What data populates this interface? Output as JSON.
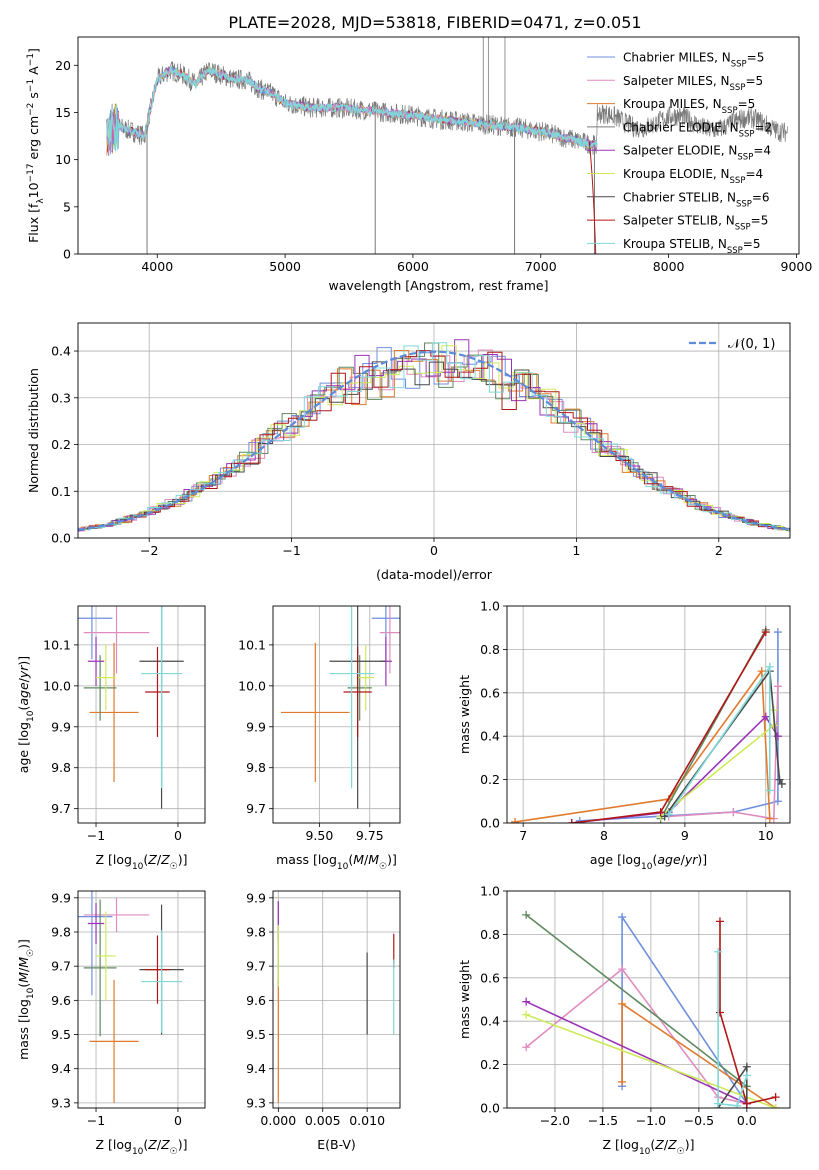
{
  "figure_title": "PLATE=2028, MJD=53818, FIBERID=0471, z=0.051",
  "colors": {
    "Chabrier MILES": "#6f8fe0",
    "Salpeter MILES": "#e08cbf",
    "Kroupa MILES": "#e07b2e",
    "Chabrier ELODIE": "#5f8a60",
    "Salpeter ELODIE": "#9a35b8",
    "Kroupa ELODIE": "#cdea5a",
    "Chabrier STELIB": "#4a4a4a",
    "Salpeter STELIB": "#b01818",
    "Kroupa STELIB": "#7fd8d8",
    "ELODIE_line": "#7a7a7a"
  },
  "chart_data": [
    {
      "id": "spectrum",
      "type": "line",
      "title": "PLATE=2028, MJD=53818, FIBERID=0471, z=0.051",
      "xlabel": "wavelength [Angstrom, rest frame]",
      "ylabel": "Flux [f_λ 10^-17 erg cm^-2 s^-1 A^-1]",
      "xlim": [
        3380,
        9020
      ],
      "ylim": [
        0,
        23
      ],
      "xticks": [
        4000,
        5000,
        6000,
        7000,
        8000,
        9000
      ],
      "yticks": [
        0,
        5,
        10,
        15,
        20
      ],
      "grid": false,
      "legend": "top-right",
      "legend_entries": [
        {
          "label": "Chabrier MILES, N",
          "sub": "SSP",
          "val": "=5",
          "color": "#6f8fe0"
        },
        {
          "label": "Salpeter MILES, N",
          "sub": "SSP",
          "val": "=5",
          "color": "#e08cbf"
        },
        {
          "label": "Kroupa MILES, N",
          "sub": "SSP",
          "val": "=5",
          "color": "#e07b2e"
        },
        {
          "label": "Chabrier ELODIE, N",
          "sub": "SSP",
          "val": "=2",
          "color": "#7a7a7a"
        },
        {
          "label": "Salpeter ELODIE, N",
          "sub": "SSP",
          "val": "=4",
          "color": "#9a35b8"
        },
        {
          "label": "Kroupa ELODIE, N",
          "sub": "SSP",
          "val": "=4",
          "color": "#cdea5a"
        },
        {
          "label": "Chabrier STELIB, N",
          "sub": "SSP",
          "val": "=6",
          "color": "#4a4a4a"
        },
        {
          "label": "Salpeter STELIB, N",
          "sub": "SSP",
          "val": "=5",
          "color": "#b01818"
        },
        {
          "label": "Kroupa STELIB, N",
          "sub": "SSP",
          "val": "=5",
          "color": "#7fd8d8"
        }
      ],
      "continuum": {
        "x": [
          3600,
          3700,
          3800,
          3900,
          4000,
          4100,
          4200,
          4300,
          4400,
          4500,
          4600,
          4700,
          4800,
          4900,
          5000,
          5200,
          5400,
          5600,
          5800,
          6000,
          6200,
          6400,
          6600,
          6800,
          7000,
          7200,
          7400
        ],
        "y": [
          12.5,
          13.5,
          13.0,
          12.5,
          18.5,
          19.5,
          19.0,
          18.0,
          19.5,
          19.0,
          18.5,
          18.5,
          17.5,
          17.0,
          16.0,
          15.5,
          15.5,
          15.3,
          15.0,
          14.7,
          14.3,
          14.0,
          13.7,
          13.4,
          13.0,
          12.3,
          11.6
        ]
      },
      "drops": [
        {
          "x": 3920,
          "y": 0
        },
        {
          "x": 5705,
          "y": 0
        },
        {
          "x": 6795,
          "y": 0
        },
        {
          "x": 7420,
          "y": 0
        }
      ],
      "spikes": [
        {
          "x": 6550,
          "y": 23
        },
        {
          "x": 6590,
          "y": 23
        },
        {
          "x": 6720,
          "y": 23
        }
      ]
    },
    {
      "id": "residuals",
      "type": "line",
      "xlabel": "(data-model)/error",
      "ylabel": "Normed distribution",
      "xlim": [
        -2.5,
        2.5
      ],
      "ylim": [
        0,
        0.46
      ],
      "xticks": [
        -2,
        -1,
        0,
        1,
        2
      ],
      "yticks": [
        0.0,
        0.1,
        0.2,
        0.3,
        0.4
      ],
      "grid": true,
      "legend": "top-right",
      "legend_entries": [
        {
          "label": "𝒩(0, 1)",
          "color": "#5b8bd9",
          "style": "dashed"
        }
      ],
      "normal_curve": {
        "mu": 0,
        "sigma": 1
      }
    },
    {
      "id": "age_vs_Z",
      "type": "scatter",
      "xlabel": "Z [log10(Z/Z☉)]",
      "ylabel": "age  [log10(age/yr)]",
      "xlim": [
        -1.22,
        0.33
      ],
      "ylim": [
        9.665,
        10.195
      ],
      "xticks": [
        -1,
        0
      ],
      "yticks": [
        9.7,
        9.8,
        9.9,
        10.0,
        10.1
      ],
      "grid": true,
      "points": [
        {
          "series": "Chabrier MILES",
          "x": -1.05,
          "y": 10.165,
          "xerr": 0.25,
          "yerr": 0.1
        },
        {
          "series": "Salpeter MILES",
          "x": -0.75,
          "y": 10.13,
          "xerr": 0.4,
          "yerr": 0.1
        },
        {
          "series": "Kroupa MILES",
          "x": -0.78,
          "y": 9.935,
          "xerr": 0.3,
          "yerr": 0.17
        },
        {
          "series": "Chabrier ELODIE",
          "x": -0.95,
          "y": 9.995,
          "xerr": 0.2,
          "yerr": 0.08
        },
        {
          "series": "Salpeter ELODIE",
          "x": -1.0,
          "y": 10.06,
          "xerr": 0.1,
          "yerr": 0.06
        },
        {
          "series": "Kroupa ELODIE",
          "x": -0.88,
          "y": 10.02,
          "xerr": 0.12,
          "yerr": 0.08
        },
        {
          "series": "Chabrier STELIB",
          "x": -0.2,
          "y": 10.06,
          "xerr": 0.27,
          "yerr": 0.36
        },
        {
          "series": "Salpeter STELIB",
          "x": -0.25,
          "y": 9.985,
          "xerr": 0.15,
          "yerr": 0.11
        },
        {
          "series": "Kroupa STELIB",
          "x": -0.2,
          "y": 10.03,
          "xerr": 0.25,
          "yerr": 0.28
        }
      ]
    },
    {
      "id": "age_vs_mass",
      "type": "scatter",
      "xlabel": "mass [log10(M/M☉)]",
      "ylabel": "",
      "xlim": [
        9.27,
        9.9
      ],
      "ylim": [
        9.665,
        10.195
      ],
      "xticks": [
        9.5,
        9.75
      ],
      "xtick_labels": [
        "9.50",
        "9.75"
      ],
      "yticks": [
        9.7,
        9.8,
        9.9,
        10.0,
        10.1
      ],
      "grid": true,
      "points": [
        {
          "series": "Chabrier MILES",
          "x": 9.83,
          "y": 10.165,
          "xerr": 0.07,
          "yerr": 0.1
        },
        {
          "series": "Salpeter MILES",
          "x": 9.85,
          "y": 10.13,
          "xerr": 0.05,
          "yerr": 0.1
        },
        {
          "series": "Kroupa MILES",
          "x": 9.48,
          "y": 9.935,
          "xerr": 0.17,
          "yerr": 0.17
        },
        {
          "series": "Chabrier ELODIE",
          "x": 9.7,
          "y": 9.995,
          "xerr": 0.06,
          "yerr": 0.08
        },
        {
          "series": "Salpeter ELODIE",
          "x": 9.83,
          "y": 10.06,
          "xerr": 0.03,
          "yerr": 0.06
        },
        {
          "series": "Kroupa ELODIE",
          "x": 9.73,
          "y": 10.02,
          "xerr": 0.04,
          "yerr": 0.08
        },
        {
          "series": "Chabrier STELIB",
          "x": 9.69,
          "y": 10.06,
          "xerr": 0.14,
          "yerr": 0.36
        },
        {
          "series": "Salpeter STELIB",
          "x": 9.69,
          "y": 9.985,
          "xerr": 0.07,
          "yerr": 0.11
        },
        {
          "series": "Kroupa STELIB",
          "x": 9.66,
          "y": 10.03,
          "xerr": 0.11,
          "yerr": 0.28
        }
      ]
    },
    {
      "id": "massweight_vs_age",
      "type": "line",
      "xlabel": "age  [log10(age/yr)]",
      "ylabel": "mass weight",
      "xlim": [
        6.8,
        10.3
      ],
      "ylim": [
        0,
        1.0
      ],
      "xticks": [
        7,
        8,
        9,
        10
      ],
      "yticks": [
        0.0,
        0.2,
        0.4,
        0.6,
        0.8,
        1.0
      ],
      "grid": true,
      "series": [
        {
          "name": "Chabrier MILES",
          "x": [
            7.7,
            9.6,
            10.15,
            10.15
          ],
          "y": [
            0.01,
            0.05,
            0.1,
            0.88
          ]
        },
        {
          "name": "Salpeter MILES",
          "x": [
            8.8,
            9.6,
            10.1,
            10.15
          ],
          "y": [
            0.03,
            0.05,
            0.02,
            0.63
          ]
        },
        {
          "name": "Kroupa MILES",
          "x": [
            6.9,
            8.8,
            9.95,
            10.05
          ],
          "y": [
            0.005,
            0.11,
            0.7,
            0.02
          ]
        },
        {
          "name": "Chabrier ELODIE",
          "x": [
            8.7,
            10.0
          ],
          "y": [
            0.02,
            0.89
          ]
        },
        {
          "name": "Salpeter ELODIE",
          "x": [
            7.6,
            8.8,
            10.0,
            10.15
          ],
          "y": [
            0.0,
            0.05,
            0.49,
            0.4
          ]
        },
        {
          "name": "Kroupa ELODIE",
          "x": [
            8.7,
            10.1,
            10.1
          ],
          "y": [
            0.03,
            0.45,
            0.52
          ]
        },
        {
          "name": "Chabrier STELIB",
          "x": [
            8.75,
            10.05,
            10.17,
            10.2
          ],
          "y": [
            0.03,
            0.7,
            0.2,
            0.18
          ]
        },
        {
          "name": "Salpeter STELIB",
          "x": [
            7.6,
            8.7,
            10.0
          ],
          "y": [
            0.0,
            0.05,
            0.88
          ]
        },
        {
          "name": "Kroupa STELIB",
          "x": [
            8.8,
            10.05,
            10.05
          ],
          "y": [
            0.04,
            0.72,
            0.15
          ]
        }
      ]
    },
    {
      "id": "mass_vs_Z",
      "type": "scatter",
      "xlabel": "Z [log10(Z/Z☉)]",
      "ylabel": "mass [log10(M/M☉)]",
      "xlim": [
        -1.22,
        0.33
      ],
      "ylim": [
        9.285,
        9.92
      ],
      "xticks": [
        -1,
        0
      ],
      "yticks": [
        9.3,
        9.4,
        9.5,
        9.6,
        9.7,
        9.8,
        9.9
      ],
      "grid": true,
      "points": [
        {
          "series": "Chabrier MILES",
          "x": -1.05,
          "y": 9.845,
          "xerr": 0.25,
          "yerr": 0.23
        },
        {
          "series": "Salpeter MILES",
          "x": -0.75,
          "y": 9.85,
          "xerr": 0.4,
          "yerr": 0.05
        },
        {
          "series": "Kroupa MILES",
          "x": -0.78,
          "y": 9.48,
          "xerr": 0.3,
          "yerr": 0.18
        },
        {
          "series": "Chabrier ELODIE",
          "x": -0.95,
          "y": 9.695,
          "xerr": 0.2,
          "yerr": 0.2
        },
        {
          "series": "Salpeter ELODIE",
          "x": -1.0,
          "y": 9.825,
          "xerr": 0.1,
          "yerr": 0.06
        },
        {
          "series": "Kroupa ELODIE",
          "x": -0.88,
          "y": 9.73,
          "xerr": 0.12,
          "yerr": 0.13
        },
        {
          "series": "Chabrier STELIB",
          "x": -0.2,
          "y": 9.69,
          "xerr": 0.27,
          "yerr": 0.19
        },
        {
          "series": "Salpeter STELIB",
          "x": -0.25,
          "y": 9.69,
          "xerr": 0.15,
          "yerr": 0.1
        },
        {
          "series": "Kroupa STELIB",
          "x": -0.2,
          "y": 9.655,
          "xerr": 0.25,
          "yerr": 0.15
        }
      ]
    },
    {
      "id": "mass_vs_EBV",
      "type": "scatter",
      "xlabel": "E(B-V)",
      "ylabel": "",
      "xlim": [
        -0.0006,
        0.0137
      ],
      "ylim": [
        9.285,
        9.92
      ],
      "xticks": [
        0.0,
        0.005,
        0.01
      ],
      "xtick_labels": [
        "0.000",
        "0.005",
        "0.010"
      ],
      "yticks": [
        9.3,
        9.4,
        9.5,
        9.6,
        9.7,
        9.8,
        9.9
      ],
      "grid": true,
      "points": [
        {
          "series": "Chabrier MILES",
          "x": 0.0,
          "y": 9.845,
          "xerr": 0,
          "yerr": 0.04
        },
        {
          "series": "Salpeter MILES",
          "x": 0.0,
          "y": 9.85,
          "xerr": 0,
          "yerr": 0.04
        },
        {
          "series": "Kroupa MILES",
          "x": 0.0,
          "y": 9.48,
          "xerr": 0,
          "yerr": 0.18
        },
        {
          "series": "Chabrier ELODIE",
          "x": 0.0,
          "y": 9.72,
          "xerr": 0,
          "yerr": 0.08
        },
        {
          "series": "Salpeter ELODIE",
          "x": 0.0,
          "y": 9.83,
          "xerr": 0,
          "yerr": 0.06
        },
        {
          "series": "Kroupa ELODIE",
          "x": 0.0,
          "y": 9.73,
          "xerr": 0,
          "yerr": 0.09
        },
        {
          "series": "Chabrier STELIB",
          "x": 0.01,
          "y": 9.62,
          "xerr": 0,
          "yerr": 0.12
        },
        {
          "series": "Salpeter STELIB",
          "x": 0.013,
          "y": 9.745,
          "xerr": 0,
          "yerr": 0.05
        },
        {
          "series": "Kroupa STELIB",
          "x": 0.013,
          "y": 9.61,
          "xerr": 0,
          "yerr": 0.11
        }
      ]
    },
    {
      "id": "massweight_vs_Z",
      "type": "line",
      "xlabel": "Z [log10(Z/Z☉)]",
      "ylabel": "mass weight",
      "xlim": [
        -2.5,
        0.45
      ],
      "ylim": [
        0,
        1.0
      ],
      "xticks": [
        -2.0,
        -1.5,
        -1.0,
        -0.5,
        0.0
      ],
      "xtick_labels": [
        "−2.0",
        "−1.5",
        "−1.0",
        "−0.5",
        "0.0"
      ],
      "yticks": [
        0.0,
        0.2,
        0.4,
        0.6,
        0.8,
        1.0
      ],
      "grid": true,
      "series": [
        {
          "name": "Chabrier MILES",
          "x": [
            -1.3,
            -1.3,
            0.0
          ],
          "y": [
            0.1,
            0.88,
            0.02
          ]
        },
        {
          "name": "Salpeter MILES",
          "x": [
            -2.3,
            -1.3,
            -0.3,
            0.0
          ],
          "y": [
            0.28,
            0.64,
            0.05,
            0.02
          ]
        },
        {
          "name": "Kroupa MILES",
          "x": [
            -1.3,
            -1.3,
            0.3
          ],
          "y": [
            0.12,
            0.48,
            0.0
          ]
        },
        {
          "name": "Chabrier ELODIE",
          "x": [
            -2.3,
            0.0
          ],
          "y": [
            0.89,
            0.1
          ]
        },
        {
          "name": "Salpeter ELODIE",
          "x": [
            -2.3,
            0.0
          ],
          "y": [
            0.49,
            0.02
          ]
        },
        {
          "name": "Kroupa ELODIE",
          "x": [
            -2.3,
            0.3
          ],
          "y": [
            0.43,
            0.0
          ]
        },
        {
          "name": "Chabrier STELIB",
          "x": [
            -0.3,
            0.0,
            0.0
          ],
          "y": [
            0.0,
            0.19,
            0.0
          ]
        },
        {
          "name": "Salpeter STELIB",
          "x": [
            -0.28,
            -0.28,
            0.0,
            0.3
          ],
          "y": [
            0.86,
            0.44,
            0.02,
            0.05
          ]
        },
        {
          "name": "Kroupa STELIB",
          "x": [
            -0.3,
            -0.3,
            -0.1,
            0.0
          ],
          "y": [
            0.72,
            0.02,
            0.01,
            0.15
          ]
        }
      ]
    }
  ]
}
